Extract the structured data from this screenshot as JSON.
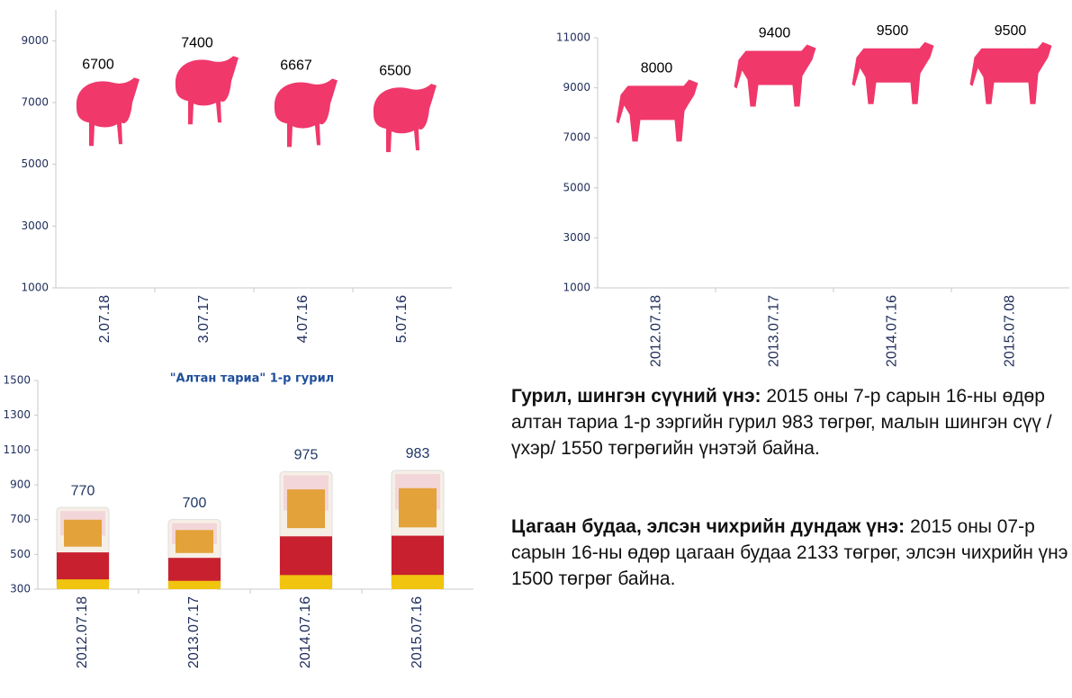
{
  "chart_data": [
    {
      "type": "bar",
      "icon": "sheep",
      "color": "#f0386b",
      "categories": [
        "2.07.18",
        "3.07.17",
        "4.07.16",
        "5.07.16"
      ],
      "values": [
        6700,
        7400,
        6667,
        6500
      ],
      "ylim": [
        1000,
        10000
      ],
      "yticks": [
        1000,
        3000,
        5000,
        7000,
        9000
      ]
    },
    {
      "type": "bar",
      "icon": "cow",
      "color": "#f0386b",
      "categories": [
        "2012.07.18",
        "2013.07.17",
        "2014.07.16",
        "2015.07.08"
      ],
      "values": [
        8000,
        9400,
        9500,
        9500
      ],
      "ylim": [
        1000,
        11000
      ],
      "yticks": [
        1000,
        3000,
        5000,
        7000,
        9000,
        11000
      ]
    },
    {
      "type": "bar",
      "icon": "flour-bag",
      "color": "#c8202f",
      "title": "\"Алтан тариа\" 1-р гурил",
      "categories": [
        "2012.07.18",
        "2013.07.17",
        "2014.07.16",
        "2015.07.16"
      ],
      "values": [
        770,
        700,
        975,
        983
      ],
      "ylim": [
        300,
        1500
      ],
      "yticks": [
        300,
        500,
        700,
        900,
        1100,
        1300,
        1500
      ]
    }
  ],
  "text": [
    {
      "heading": "Гурил, шингэн сүүний үнэ:",
      "body": " 2015 оны 7-р сарын 16-ны өдөр алтан тариа 1-р зэргийн гурил 983 төгрөг, малын шингэн сүү /үхэр/ 1550 төгрөгийн үнэтэй байна."
    },
    {
      "heading": "Цагаан будаа, элсэн чихрийн дундаж үнэ:",
      "body": " 2015 оны 07-р сарын 16-ны өдөр цагаан будаа 2133 төгрөг, элсэн чихрийн үнэ 1500 төгрөг байна."
    }
  ]
}
